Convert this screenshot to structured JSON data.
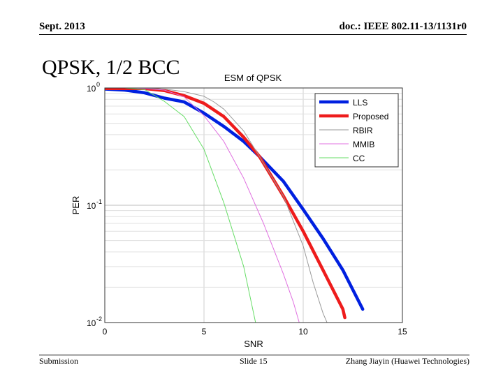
{
  "header": {
    "date": "Sept. 2013",
    "doc_id": "doc.: IEEE 802.11-13/1131r0"
  },
  "slide": {
    "title": "QPSK, 1/2 BCC"
  },
  "footer": {
    "left": "Submission",
    "center": "Slide 15",
    "right": "Zhang Jiayin (Huawei Technologies)"
  },
  "chart_data": {
    "type": "line",
    "title": "ESM of QPSK",
    "xlabel": "SNR",
    "ylabel": "PER",
    "xlim": [
      0,
      15
    ],
    "ylim": [
      0.01,
      1
    ],
    "yscale": "log",
    "grid": true,
    "legend_position": "top-right",
    "x_ticks": [
      0,
      5,
      10,
      15
    ],
    "x_tick_labels": [
      "0",
      "5",
      "10",
      "15"
    ],
    "y_ticks": [
      1,
      0.1,
      0.01
    ],
    "y_tick_labels": [
      {
        "base": "10",
        "exp": "0"
      },
      {
        "base": "10",
        "exp": "-1"
      },
      {
        "base": "10",
        "exp": "-2"
      }
    ],
    "series": [
      {
        "name": "LLS",
        "color": "#0020e0",
        "width": 4.5,
        "x": [
          0,
          1,
          2,
          3,
          4,
          5,
          6,
          7,
          7.8,
          9,
          10,
          11,
          12,
          13
        ],
        "y": [
          0.98,
          0.96,
          0.91,
          0.82,
          0.76,
          0.61,
          0.47,
          0.35,
          0.26,
          0.16,
          0.092,
          0.052,
          0.028,
          0.013
        ]
      },
      {
        "name": "Proposed",
        "color": "#ee1c1c",
        "width": 4.5,
        "x": [
          0,
          1,
          2,
          3,
          4,
          5,
          6,
          7,
          7.8,
          9,
          10,
          11,
          12,
          12.1
        ],
        "y": [
          0.99,
          0.99,
          0.99,
          0.95,
          0.86,
          0.74,
          0.57,
          0.38,
          0.26,
          0.12,
          0.06,
          0.028,
          0.013,
          0.011
        ]
      },
      {
        "name": "RBIR",
        "color": "#9a9a9a",
        "width": 1,
        "x": [
          0,
          1,
          2,
          3,
          4,
          5,
          5.5,
          6,
          7,
          7.8,
          9,
          10,
          10.5,
          11,
          11.2
        ],
        "y": [
          1.0,
          1.0,
          0.99,
          0.98,
          0.93,
          0.85,
          0.76,
          0.66,
          0.43,
          0.26,
          0.12,
          0.045,
          0.022,
          0.012,
          0.01
        ]
      },
      {
        "name": "MMIB",
        "color": "#e070e0",
        "width": 1,
        "x": [
          0,
          1,
          2,
          3,
          4,
          5,
          6,
          7,
          8,
          9,
          9.5,
          9.8
        ],
        "y": [
          1.0,
          1.0,
          0.99,
          0.96,
          0.84,
          0.58,
          0.35,
          0.17,
          0.07,
          0.026,
          0.015,
          0.01
        ]
      },
      {
        "name": "CC",
        "color": "#66dd66",
        "width": 1,
        "x": [
          0,
          1,
          2,
          3,
          4,
          5,
          6,
          7,
          7.6
        ],
        "y": [
          1.0,
          1.0,
          0.97,
          0.77,
          0.57,
          0.3,
          0.105,
          0.03,
          0.01
        ]
      }
    ]
  }
}
